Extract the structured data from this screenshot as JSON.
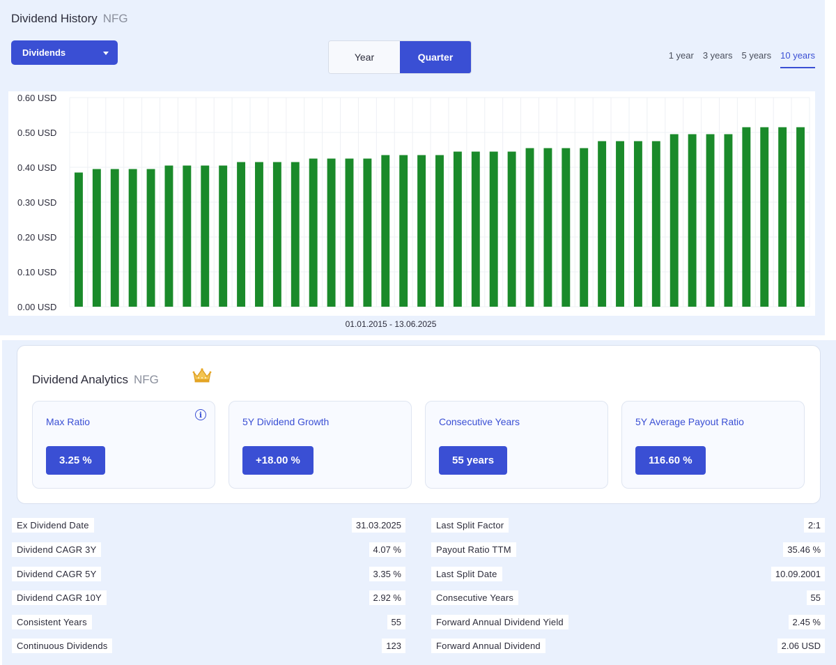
{
  "header": {
    "title": "Dividend History",
    "ticker": "NFG"
  },
  "dropdown": {
    "label": "Dividends"
  },
  "toggle": {
    "year_label": "Year",
    "quarter_label": "Quarter",
    "selected": "Quarter"
  },
  "ranges": [
    {
      "label": "1 year",
      "active": false
    },
    {
      "label": "3 years",
      "active": false
    },
    {
      "label": "5 years",
      "active": false
    },
    {
      "label": "10 years",
      "active": true
    }
  ],
  "chart_data": {
    "type": "bar",
    "ylim": [
      0,
      0.6
    ],
    "yticks": [
      "0.00 USD",
      "0.10 USD",
      "0.20 USD",
      "0.30 USD",
      "0.40 USD",
      "0.50 USD",
      "0.60 USD"
    ],
    "bar_color": "#1a8a2a",
    "grid": true,
    "values": [
      0.385,
      0.395,
      0.395,
      0.395,
      0.395,
      0.405,
      0.405,
      0.405,
      0.405,
      0.415,
      0.415,
      0.415,
      0.415,
      0.425,
      0.425,
      0.425,
      0.425,
      0.435,
      0.435,
      0.435,
      0.435,
      0.445,
      0.445,
      0.445,
      0.445,
      0.455,
      0.455,
      0.455,
      0.455,
      0.475,
      0.475,
      0.475,
      0.475,
      0.495,
      0.495,
      0.495,
      0.495,
      0.515,
      0.515,
      0.515,
      0.515
    ],
    "xlabel": "01.01.2015 - 13.06.2025"
  },
  "analytics": {
    "title": "Dividend Analytics",
    "ticker": "NFG",
    "crown_icon": "crown-icon",
    "metrics": [
      {
        "label": "Max Ratio",
        "value": "3.25 %"
      },
      {
        "label": "5Y Dividend Growth",
        "value": "+18.00 %"
      },
      {
        "label": "Consecutive Years",
        "value": "55 years"
      },
      {
        "label": "5Y Average Payout Ratio",
        "value": "116.60 %"
      }
    ]
  },
  "stats_left": [
    {
      "label": "Ex Dividend Date",
      "value": "31.03.2025"
    },
    {
      "label": "Dividend CAGR 3Y",
      "value": "4.07 %"
    },
    {
      "label": "Dividend CAGR 5Y",
      "value": "3.35 %"
    },
    {
      "label": "Dividend CAGR 10Y",
      "value": "2.92 %"
    },
    {
      "label": "Consistent Years",
      "value": "55"
    },
    {
      "label": "Continuous Dividends",
      "value": "123"
    }
  ],
  "stats_right": [
    {
      "label": "Last Split Factor",
      "value": "2:1"
    },
    {
      "label": "Payout Ratio TTM",
      "value": "35.46 %"
    },
    {
      "label": "Last Split Date",
      "value": "10.09.2001"
    },
    {
      "label": "Consecutive Years",
      "value": "55"
    },
    {
      "label": "Forward Annual Dividend Yield",
      "value": "2.45 %"
    },
    {
      "label": "Forward Annual Dividend",
      "value": "2.06 USD"
    }
  ],
  "colors": {
    "accent": "#3a4fd4",
    "panel_bg": "#eaf1fd",
    "bar": "#1a8a2a"
  }
}
